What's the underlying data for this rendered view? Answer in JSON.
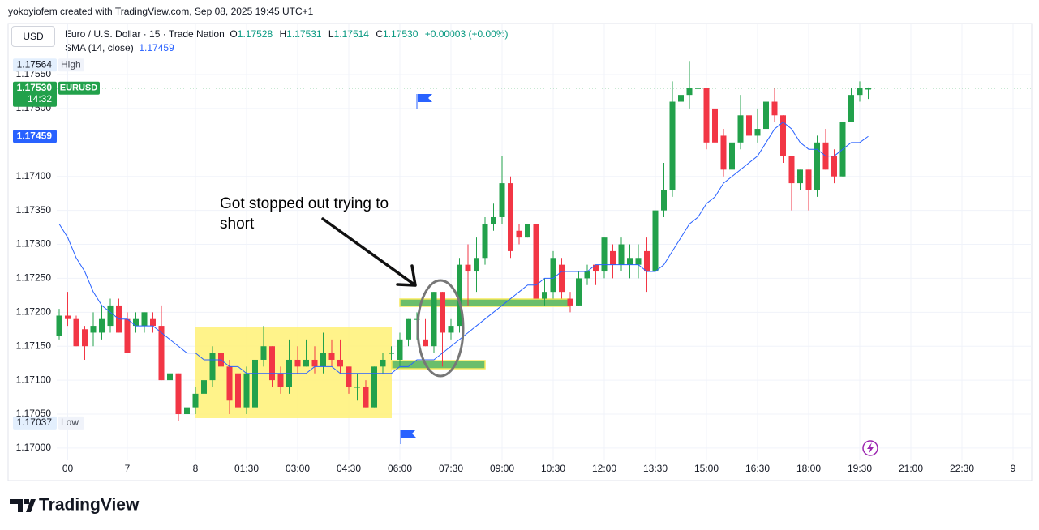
{
  "header": {
    "credit": "yokoyiofem created with TradingView.com, Sep 08, 2025 19:45 UTC+1",
    "currency": "USD",
    "symbol": "Euro / U.S. Dollar · 15 · Trade Nation",
    "ohlc": [
      {
        "key": "O",
        "value": "1.17528"
      },
      {
        "key": "H",
        "value": "1.17531"
      },
      {
        "key": "L",
        "value": "1.17514"
      },
      {
        "key": "C",
        "value": "1.17530"
      }
    ],
    "change": "+0.00003 (+0.00%)"
  },
  "footer": {
    "brand": "TradingView"
  },
  "chart_data": {
    "type": "candlestick",
    "up_color": "#22a14b",
    "down_color": "#f23645",
    "ylim": [
      1.16982,
      1.17624
    ],
    "yticks": [
      {
        "value": 1.17,
        "label": "1.17000"
      },
      {
        "value": 1.1705,
        "label": "1.17050"
      },
      {
        "value": 1.171,
        "label": "1.17100"
      },
      {
        "value": 1.1715,
        "label": "1.17150"
      },
      {
        "value": 1.172,
        "label": "1.17200"
      },
      {
        "value": 1.1725,
        "label": "1.17250"
      },
      {
        "value": 1.173,
        "label": "1.17300"
      },
      {
        "value": 1.1735,
        "label": "1.17350"
      },
      {
        "value": 1.174,
        "label": "1.17400"
      },
      {
        "value": 1.175,
        "label": "1.17500"
      },
      {
        "value": 1.1755,
        "label": "1.17550"
      }
    ],
    "grid": true,
    "categories": [
      null,
      "00",
      null,
      null,
      null,
      null,
      null,
      null,
      "7",
      null,
      null,
      null,
      null,
      null,
      null,
      null,
      "8",
      null,
      null,
      null,
      null,
      null,
      "01:30",
      null,
      null,
      null,
      null,
      null,
      "03:00",
      null,
      null,
      null,
      null,
      null,
      "04:30",
      null,
      null,
      null,
      null,
      null,
      "06:00",
      null,
      null,
      null,
      null,
      null,
      "07:30",
      null,
      null,
      null,
      null,
      null,
      "09:00",
      null,
      null,
      null,
      null,
      null,
      "10:30",
      null,
      null,
      null,
      null,
      null,
      "12:00",
      null,
      null,
      null,
      null,
      null,
      "13:30",
      null,
      null,
      null,
      null,
      null,
      "15:00",
      null,
      null,
      null,
      null,
      null,
      "16:30",
      null,
      null,
      null,
      null,
      null,
      "18:00",
      null,
      null,
      null,
      null,
      null,
      "19:30",
      null,
      null,
      null,
      null,
      null,
      "21:00",
      null,
      null,
      null,
      null,
      null,
      "22:30",
      null,
      null,
      null,
      null,
      null,
      "9"
    ],
    "open": [
      1.17165,
      1.17195,
      1.1719,
      1.17175,
      1.1717,
      1.1717,
      1.1718,
      1.1721,
      1.1719,
      1.1718,
      1.1718,
      1.1719,
      1.1718,
      1.171,
      1.1711,
      1.1705,
      1.1706,
      1.1708,
      1.171,
      1.1714,
      1.1712,
      1.1711,
      1.1706,
      1.1706,
      1.1713,
      1.1715,
      1.1711,
      1.1709,
      1.1713,
      1.1712,
      1.1713,
      1.1712,
      1.1714,
      1.1713,
      1.1712,
      1.1709,
      1.1709,
      1.1706,
      1.1712,
      1.1714,
      1.1713,
      1.1716,
      1.1719,
      1.1716,
      1.1715,
      1.1723,
      1.1717,
      1.1718,
      1.1727,
      1.1726,
      1.1728,
      1.1733,
      1.1734,
      1.1739,
      1.1732,
      1.1731,
      1.1733,
      1.1722,
      1.1723,
      1.1727,
      1.1722,
      1.1721,
      1.1725,
      1.1727,
      1.1726,
      1.1729,
      1.1727,
      1.1727,
      1.1727,
      1.1729,
      1.1726,
      1.1735,
      1.1738,
      1.1751,
      1.1752,
      1.1753,
      1.1753,
      1.175,
      1.1746,
      1.1741,
      1.1745,
      1.1749,
      1.1746,
      1.1747,
      1.1751,
      1.1749,
      1.1743,
      1.1739,
      1.1741,
      1.1738,
      1.1745,
      1.1743,
      1.174,
      1.1748,
      1.1752,
      1.17528,
      null,
      null,
      null,
      null,
      null,
      null,
      null,
      null,
      null,
      null,
      null,
      null,
      null,
      null,
      null,
      null,
      null
    ],
    "high": [
      1.17205,
      1.1723,
      1.17195,
      1.1718,
      1.172,
      1.1721,
      1.1722,
      1.1722,
      1.172,
      1.172,
      1.172,
      1.172,
      1.1721,
      1.1712,
      1.1711,
      1.1707,
      1.1709,
      1.1712,
      1.1715,
      1.1716,
      1.1713,
      1.1712,
      1.1712,
      1.1714,
      1.1718,
      1.1715,
      1.1712,
      1.1716,
      1.1715,
      1.1716,
      1.1715,
      1.1717,
      1.1716,
      1.1716,
      1.1712,
      1.1711,
      1.171,
      1.1712,
      1.1714,
      1.1715,
      1.1717,
      1.1719,
      1.172,
      1.1719,
      1.1723,
      1.1723,
      1.1719,
      1.1728,
      1.173,
      1.1731,
      1.1734,
      1.1736,
      1.1743,
      1.174,
      1.1733,
      1.1733,
      1.1733,
      1.1725,
      1.1729,
      1.1728,
      1.1723,
      1.1726,
      1.1727,
      1.1727,
      1.1731,
      1.173,
      1.1731,
      1.173,
      1.173,
      1.1731,
      1.1735,
      1.1742,
      1.1754,
      1.1754,
      1.1757,
      1.1757,
      1.1753,
      1.1751,
      1.1747,
      1.1745,
      1.1752,
      1.1753,
      1.175,
      1.1752,
      1.1753,
      1.1749,
      1.1743,
      1.1741,
      1.1741,
      1.1746,
      1.1747,
      1.1744,
      1.1748,
      1.1753,
      1.1754,
      1.17531,
      null,
      null,
      null,
      null,
      null,
      null,
      null,
      null,
      null,
      null,
      null,
      null,
      null,
      null,
      null,
      null,
      null
    ],
    "low": [
      1.1716,
      1.1718,
      1.1715,
      1.1713,
      1.1715,
      1.1716,
      1.1717,
      1.1717,
      1.1714,
      1.1717,
      1.1717,
      1.1717,
      1.171,
      1.1709,
      1.1704,
      1.17037,
      1.1705,
      1.1707,
      1.1709,
      1.171,
      1.1705,
      1.1705,
      1.1705,
      1.1705,
      1.1712,
      1.1709,
      1.1708,
      1.1708,
      1.1711,
      1.1712,
      1.1711,
      1.1711,
      1.1712,
      1.1711,
      1.1708,
      1.1707,
      1.1706,
      1.1706,
      1.1711,
      1.1713,
      1.1712,
      1.1715,
      1.1716,
      1.1715,
      1.1714,
      1.1712,
      1.1716,
      1.1717,
      1.1721,
      1.1723,
      1.1727,
      1.1732,
      1.1733,
      1.1728,
      1.173,
      1.1731,
      1.1722,
      1.1721,
      1.1722,
      1.1722,
      1.172,
      1.1721,
      1.1724,
      1.1724,
      1.1725,
      1.1725,
      1.1726,
      1.1725,
      1.1725,
      1.1723,
      1.1726,
      1.1734,
      1.1737,
      1.1748,
      1.175,
      1.1752,
      1.1744,
      1.174,
      1.174,
      1.1741,
      1.1744,
      1.1745,
      1.1745,
      1.1747,
      1.1748,
      1.1742,
      1.1735,
      1.1738,
      1.1735,
      1.1737,
      1.1741,
      1.1739,
      1.174,
      1.1748,
      1.1751,
      1.17514,
      null,
      null,
      null,
      null,
      null,
      null,
      null,
      null,
      null,
      null,
      null,
      null,
      null,
      null,
      null,
      null,
      null
    ],
    "close": [
      1.17195,
      1.1719,
      1.1715,
      1.1715,
      1.1718,
      1.1719,
      1.1721,
      1.1717,
      1.1714,
      1.1719,
      1.172,
      1.1718,
      1.171,
      1.1711,
      1.1705,
      1.1706,
      1.1708,
      1.171,
      1.1714,
      1.1712,
      1.1707,
      1.1706,
      1.1711,
      1.1713,
      1.1715,
      1.171,
      1.1709,
      1.1713,
      1.1712,
      1.1713,
      1.1712,
      1.1714,
      1.1713,
      1.1712,
      1.1709,
      1.1709,
      1.1706,
      1.1712,
      1.1713,
      1.1714,
      1.1716,
      1.1719,
      1.1719,
      1.1715,
      1.1723,
      1.1717,
      1.1718,
      1.1727,
      1.1726,
      1.1728,
      1.1733,
      1.1734,
      1.1739,
      1.1729,
      1.1731,
      1.1733,
      1.1722,
      1.1723,
      1.1728,
      1.1723,
      1.1721,
      1.1725,
      1.1726,
      1.1726,
      1.1731,
      1.1727,
      1.173,
      1.1728,
      1.1728,
      1.1726,
      1.1735,
      1.1738,
      1.1751,
      1.1752,
      1.1753,
      1.1753,
      1.1745,
      1.1745,
      1.1741,
      1.1745,
      1.1749,
      1.1746,
      1.1747,
      1.1751,
      1.1749,
      1.1743,
      1.1739,
      1.1741,
      1.1738,
      1.1745,
      1.1741,
      1.174,
      1.1748,
      1.1752,
      1.1753,
      1.1753,
      null,
      null,
      null,
      null,
      null,
      null,
      null,
      null,
      null,
      null,
      null,
      null,
      null,
      null,
      null,
      null,
      null
    ],
    "sma": {
      "name": "SMA (14, close)",
      "color": "#2962ff",
      "value_label": "1.17459",
      "values": [
        1.1733,
        1.1731,
        1.1728,
        1.1726,
        1.1723,
        1.1721,
        1.172,
        1.1719,
        1.1719,
        1.1718,
        1.1718,
        1.1718,
        1.1717,
        1.1716,
        1.1715,
        1.1714,
        1.1714,
        1.1713,
        1.1713,
        1.1713,
        1.1712,
        1.1712,
        1.1711,
        1.1711,
        1.1711,
        1.1711,
        1.1711,
        1.1711,
        1.1711,
        1.1711,
        1.1712,
        1.1712,
        1.1712,
        1.1711,
        1.1711,
        1.1711,
        1.1711,
        1.1711,
        1.1711,
        1.1711,
        1.1712,
        1.1712,
        1.1713,
        1.1713,
        1.1713,
        1.1714,
        1.1715,
        1.1716,
        1.1717,
        1.1718,
        1.1719,
        1.172,
        1.1721,
        1.1722,
        1.1723,
        1.1724,
        1.1724,
        1.1725,
        1.1725,
        1.1726,
        1.1726,
        1.1726,
        1.1726,
        1.1727,
        1.1727,
        1.1727,
        1.1727,
        1.1727,
        1.1727,
        1.1726,
        1.1726,
        1.1727,
        1.1729,
        1.1731,
        1.1733,
        1.1734,
        1.1736,
        1.1737,
        1.1739,
        1.174,
        1.1741,
        1.1742,
        1.1743,
        1.1745,
        1.1747,
        1.1748,
        1.1747,
        1.1745,
        1.1744,
        1.1744,
        1.1743,
        1.1743,
        1.1744,
        1.1745,
        1.1745,
        1.17459,
        null,
        null,
        null,
        null,
        null,
        null,
        null,
        null,
        null,
        null,
        null,
        null,
        null,
        null,
        null,
        null,
        null
      ]
    },
    "current_price": {
      "value": 1.1753,
      "label": "1.17530",
      "symbol": "EURUSD",
      "countdown": "14:32"
    },
    "price_labels": [
      {
        "value": 1.17564,
        "label": "1.17564",
        "text": "High"
      },
      {
        "value": 1.17037,
        "label": "1.17037",
        "text": "Low"
      }
    ],
    "annotation": [
      "Got stopped out trying to",
      "short"
    ]
  }
}
